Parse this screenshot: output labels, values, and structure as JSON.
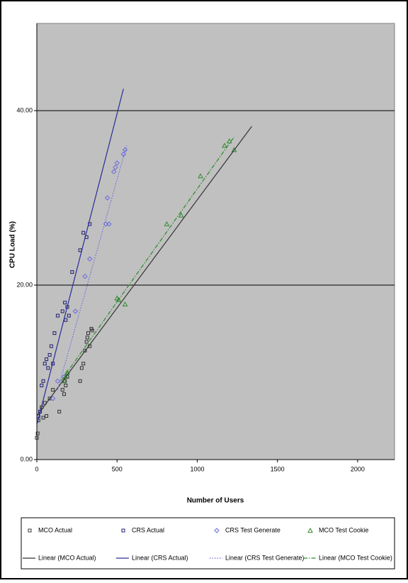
{
  "chart_data": {
    "type": "scatter",
    "y_label": "CPU Load (%)",
    "x_label": "Number of Users",
    "xlim": [
      0,
      2230
    ],
    "xticks": [
      0,
      500,
      1000,
      1500,
      2000
    ],
    "ylim": [
      0,
      50
    ],
    "yticks": [
      {
        "value": 0,
        "label": "0.00"
      },
      {
        "value": 20,
        "label": "20.00"
      },
      {
        "value": 40,
        "label": "40.00"
      }
    ],
    "grid": true,
    "series": [
      {
        "name": "MCO Actual",
        "color": "#333333",
        "marker": "square",
        "x": [
          0,
          5,
          10,
          20,
          30,
          40,
          50,
          60,
          80,
          100,
          140,
          160,
          170,
          175,
          180,
          190,
          270,
          280,
          290,
          300,
          310,
          315,
          320,
          330,
          340,
          345
        ],
        "values": [
          2.5,
          3,
          4.5,
          5.5,
          6,
          4.8,
          6.5,
          5,
          7,
          8,
          5.5,
          8,
          7.5,
          9,
          8.5,
          9.5,
          9,
          10.5,
          11,
          12.5,
          13.5,
          14,
          14.5,
          13,
          15,
          14.8
        ]
      },
      {
        "name": "CRS Actual",
        "color": "#1f1f6e",
        "marker": "square",
        "x": [
          10,
          20,
          30,
          40,
          50,
          60,
          70,
          80,
          90,
          100,
          110,
          130,
          160,
          175,
          180,
          190,
          200,
          220,
          270,
          290,
          310,
          330
        ],
        "values": [
          5,
          5.5,
          8.5,
          9,
          11,
          11.5,
          10.5,
          12,
          13,
          11,
          14.5,
          16.5,
          17,
          18,
          16,
          17.5,
          16.5,
          21.5,
          24,
          26,
          25.5,
          27
        ]
      },
      {
        "name": "CRS Test Generate",
        "color": "#6a6adf",
        "marker": "diamond",
        "x": [
          100,
          130,
          170,
          240,
          300,
          330,
          430,
          440,
          450,
          480,
          490,
          500,
          540,
          550
        ],
        "values": [
          7,
          9,
          9.5,
          17,
          21,
          23,
          27,
          30,
          27,
          33,
          33.5,
          34,
          35,
          35.5
        ]
      },
      {
        "name": "MCO Test Cookie",
        "color": "#2e8b2e",
        "marker": "triangle",
        "x": [
          170,
          180,
          190,
          500,
          510,
          550,
          810,
          900,
          1020,
          1170,
          1200,
          1230
        ],
        "values": [
          9,
          9.5,
          10,
          18.5,
          18.3,
          17.8,
          27,
          28,
          32.5,
          36,
          36.5,
          35.5
        ]
      },
      {
        "name": "Linear (MCO Actual)",
        "color": "#333333",
        "line": "solid",
        "x": [
          0,
          1340
        ],
        "values": [
          5,
          38.2
        ]
      },
      {
        "name": "Linear (CRS Actual)",
        "color": "#2a2a9a",
        "line": "solid",
        "x": [
          0,
          540
        ],
        "values": [
          4,
          42.5
        ]
      },
      {
        "name": "Linear (CRS Test Generate)",
        "color": "#6a6adf",
        "line": "dotted",
        "x": [
          130,
          560
        ],
        "values": [
          8,
          36
        ]
      },
      {
        "name": "Linear (MCO Test Cookie)",
        "color": "#2e8b2e",
        "line": "dashdot",
        "x": [
          150,
          1230
        ],
        "values": [
          9,
          37
        ]
      }
    ]
  }
}
